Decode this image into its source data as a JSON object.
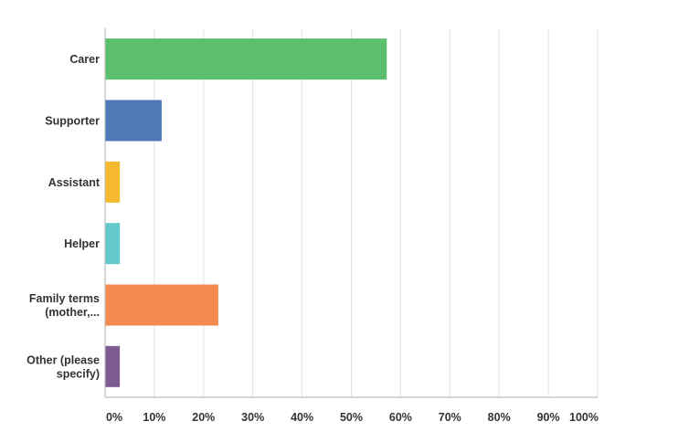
{
  "chart_data": {
    "type": "bar",
    "orientation": "horizontal",
    "categories": [
      [
        "Carer"
      ],
      [
        "Supporter"
      ],
      [
        "Assistant"
      ],
      [
        "Helper"
      ],
      [
        "Family terms",
        "(mother,..."
      ],
      [
        "Other (please",
        "specify)"
      ]
    ],
    "values": [
      57.1,
      11.4,
      2.9,
      2.9,
      22.9,
      2.9
    ],
    "colors": [
      "#5cbf6e",
      "#4d79b6",
      "#f5b930",
      "#62c8cb",
      "#f28b4d",
      "#7c5b93"
    ],
    "x_ticks": [
      "0%",
      "10%",
      "20%",
      "30%",
      "40%",
      "50%",
      "60%",
      "70%",
      "80%",
      "90%",
      "100%"
    ],
    "xlim": [
      0,
      100
    ],
    "unit": "%",
    "grid": true,
    "legend": "none"
  }
}
